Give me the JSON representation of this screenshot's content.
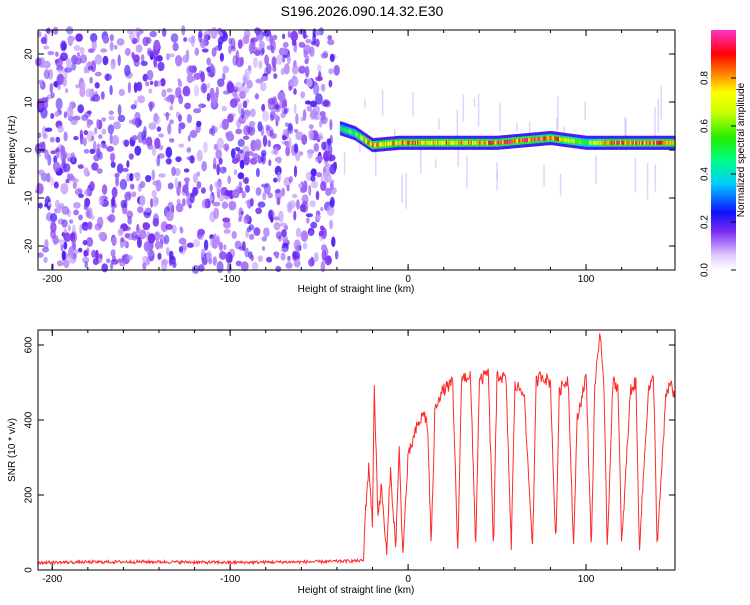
{
  "title": "S196.2026.090.14.32.E30",
  "chart_data": [
    {
      "type": "heatmap",
      "name": "spectrogram",
      "xlabel": "Height of straight line (km)",
      "ylabel": "Frequency (Hz)",
      "xlim": [
        -208,
        150
      ],
      "ylim": [
        -25,
        25
      ],
      "xticks": [
        -200,
        -100,
        0,
        100
      ],
      "xtick_labels": [
        "-200",
        "-100",
        "0",
        "100"
      ],
      "yticks": [
        -20,
        -10,
        0,
        10,
        20
      ],
      "ytick_labels": [
        "-20",
        "-10",
        "0",
        "10",
        "20"
      ],
      "noise_region_km": [
        -208,
        -40
      ],
      "signal_onset_km": -38,
      "signal_band": [
        {
          "x": -38,
          "freq": 4.5,
          "amp": 0.55
        },
        {
          "x": -30,
          "freq": 3.5,
          "amp": 0.6
        },
        {
          "x": -20,
          "freq": 1.0,
          "amp": 0.9
        },
        {
          "x": -5,
          "freq": 1.5,
          "amp": 0.85
        },
        {
          "x": 10,
          "freq": 1.5,
          "amp": 0.85
        },
        {
          "x": 30,
          "freq": 1.5,
          "amp": 0.8
        },
        {
          "x": 50,
          "freq": 1.5,
          "amp": 0.95
        },
        {
          "x": 80,
          "freq": 2.5,
          "amp": 0.95
        },
        {
          "x": 100,
          "freq": 1.5,
          "amp": 0.6
        },
        {
          "x": 115,
          "freq": 1.5,
          "amp": 0.9
        },
        {
          "x": 150,
          "freq": 1.5,
          "amp": 0.9
        }
      ],
      "colorbar": {
        "label": "Normalized spectral amplitude",
        "ticks": [
          0.0,
          0.2,
          0.4,
          0.6,
          0.8
        ],
        "tick_labels": [
          "0.0",
          "0.2",
          "0.4",
          "0.6",
          "0.8"
        ],
        "range": [
          0,
          1
        ]
      }
    },
    {
      "type": "line",
      "name": "snr",
      "xlabel": "Height of straight line (km)",
      "ylabel": "SNR (10 * v/v)",
      "xlim": [
        -208,
        150
      ],
      "ylim": [
        0,
        640
      ],
      "xticks": [
        -200,
        -100,
        0,
        100
      ],
      "xtick_labels": [
        "-200",
        "-100",
        "0",
        "100"
      ],
      "yticks": [
        0,
        200,
        400,
        600
      ],
      "ytick_labels": [
        "0",
        "200",
        "400",
        "600"
      ],
      "line_color": "#ff2a2a",
      "series": [
        {
          "name": "SNR",
          "x": [
            -208,
            -150,
            -100,
            -50,
            -25,
            -24,
            -22,
            -20,
            -19,
            -17,
            -15,
            -12,
            -10,
            -7,
            -5,
            -3,
            0,
            3,
            5,
            7,
            9,
            11,
            13,
            15,
            17,
            20,
            25,
            28,
            30,
            35,
            38,
            40,
            45,
            48,
            50,
            55,
            58,
            60,
            65,
            70,
            72,
            75,
            80,
            83,
            85,
            90,
            93,
            95,
            100,
            103,
            105,
            108,
            110,
            112,
            115,
            118,
            120,
            125,
            128,
            130,
            135,
            138,
            140,
            145,
            148,
            150
          ],
          "y": [
            20,
            22,
            20,
            22,
            25,
            160,
            280,
            120,
            490,
            150,
            220,
            40,
            270,
            60,
            320,
            40,
            300,
            350,
            380,
            400,
            420,
            380,
            60,
            420,
            460,
            480,
            500,
            40,
            510,
            520,
            60,
            500,
            530,
            60,
            520,
            510,
            60,
            490,
            480,
            60,
            500,
            520,
            500,
            60,
            480,
            510,
            60,
            400,
            520,
            60,
            500,
            640,
            480,
            60,
            500,
            490,
            60,
            480,
            500,
            60,
            480,
            510,
            60,
            470,
            500,
            450
          ]
        }
      ]
    }
  ]
}
